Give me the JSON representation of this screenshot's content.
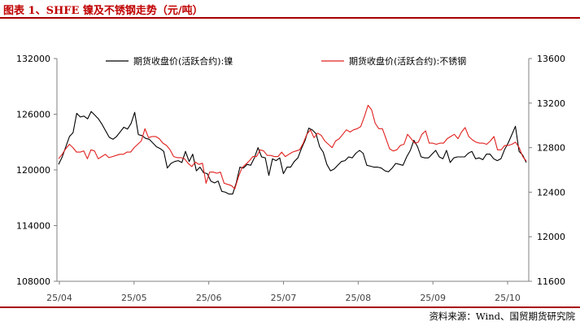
{
  "header": {
    "title": "图表 1、SHFE 镍及不锈钢走势（元/吨）"
  },
  "footer": {
    "source": "资料来源：Wind、国贸期货研究院"
  },
  "colors": {
    "brand": "#a80000",
    "nickel": "#000000",
    "stainless": "#e0201e",
    "axis": "#808080"
  },
  "chart_data": {
    "type": "line",
    "legend_position": "top",
    "grid": false,
    "x_tick_labels": [
      "25/04",
      "25/05",
      "25/06",
      "25/07",
      "25/08",
      "25/09",
      "25/10"
    ],
    "y_left": {
      "range": [
        108000,
        132000
      ],
      "ticks": [
        "108000",
        "114000",
        "120000",
        "126000",
        "132000"
      ]
    },
    "y_right": {
      "range": [
        11600,
        13600
      ],
      "ticks": [
        "11600",
        "12000",
        "12400",
        "12800",
        "13200",
        "13600"
      ]
    },
    "series": [
      {
        "name": "期货收盘价(活跃合约):镍",
        "axis": "left",
        "values": [
          120600,
          121400,
          122500,
          123600,
          124000,
          126100,
          125700,
          125800,
          125500,
          126300,
          125900,
          125500,
          124900,
          124200,
          123500,
          123300,
          123600,
          124100,
          124600,
          124400,
          125000,
          126200,
          123800,
          123700,
          123400,
          123300,
          122900,
          122500,
          122300,
          122000,
          120200,
          120700,
          120900,
          121000,
          120800,
          122000,
          120900,
          121700,
          119900,
          120300,
          119700,
          119600,
          118800,
          118600,
          118800,
          117700,
          117600,
          117400,
          117400,
          118600,
          120300,
          120200,
          120600,
          120500,
          121300,
          122400,
          121400,
          121300,
          119400,
          121200,
          121000,
          121300,
          119600,
          120300,
          120300,
          120900,
          121300,
          122300,
          123200,
          124500,
          124300,
          123900,
          122500,
          121900,
          120600,
          119900,
          120100,
          120500,
          120900,
          121000,
          121400,
          121300,
          121800,
          122100,
          121800,
          120500,
          120400,
          120300,
          120300,
          120200,
          119900,
          119800,
          120200,
          120700,
          120600,
          120500,
          121400,
          122100,
          123200,
          122500,
          121400,
          121300,
          121300,
          121700,
          122100,
          121400,
          121200,
          122100,
          120800,
          121300,
          121400,
          121400,
          121400,
          121800,
          122000,
          121200,
          121300,
          121100,
          121700,
          121700,
          121200,
          121000,
          121200,
          122200,
          122900,
          123800,
          124700,
          122000,
          121600,
          120800
        ]
      },
      {
        "name": "期货收盘价(活跃合约):不锈钢",
        "axis": "right",
        "values": [
          12700,
          12740,
          12790,
          12830,
          12800,
          12760,
          12760,
          12770,
          12700,
          12780,
          12770,
          12700,
          12720,
          12740,
          12710,
          12720,
          12730,
          12740,
          12740,
          12760,
          12760,
          12800,
          12830,
          12860,
          12970,
          12890,
          12900,
          12900,
          12880,
          12840,
          12820,
          12780,
          12720,
          12710,
          12710,
          12700,
          12660,
          12630,
          12670,
          12650,
          12660,
          12480,
          12580,
          12580,
          12570,
          12580,
          12480,
          12470,
          12460,
          12430,
          12540,
          12620,
          12650,
          12680,
          12720,
          12720,
          12780,
          12770,
          12730,
          12730,
          12720,
          12720,
          12760,
          12720,
          12740,
          12760,
          12770,
          12780,
          12840,
          12920,
          12960,
          12890,
          12930,
          12910,
          12860,
          12830,
          12800,
          12860,
          12880,
          12920,
          12960,
          12940,
          12960,
          12970,
          12990,
          13080,
          13180,
          13140,
          13020,
          12970,
          12970,
          12880,
          12790,
          12770,
          12780,
          12820,
          12830,
          12920,
          12880,
          12840,
          12850,
          12920,
          12950,
          12840,
          12840,
          12830,
          12840,
          12840,
          12880,
          12900,
          12920,
          12880,
          12940,
          12980,
          12900,
          12870,
          12850,
          12840,
          12840,
          12830,
          12860,
          12900,
          12780,
          12780,
          12820,
          12820,
          12830,
          12850,
          12800,
          12720,
          12680
        ]
      }
    ]
  }
}
